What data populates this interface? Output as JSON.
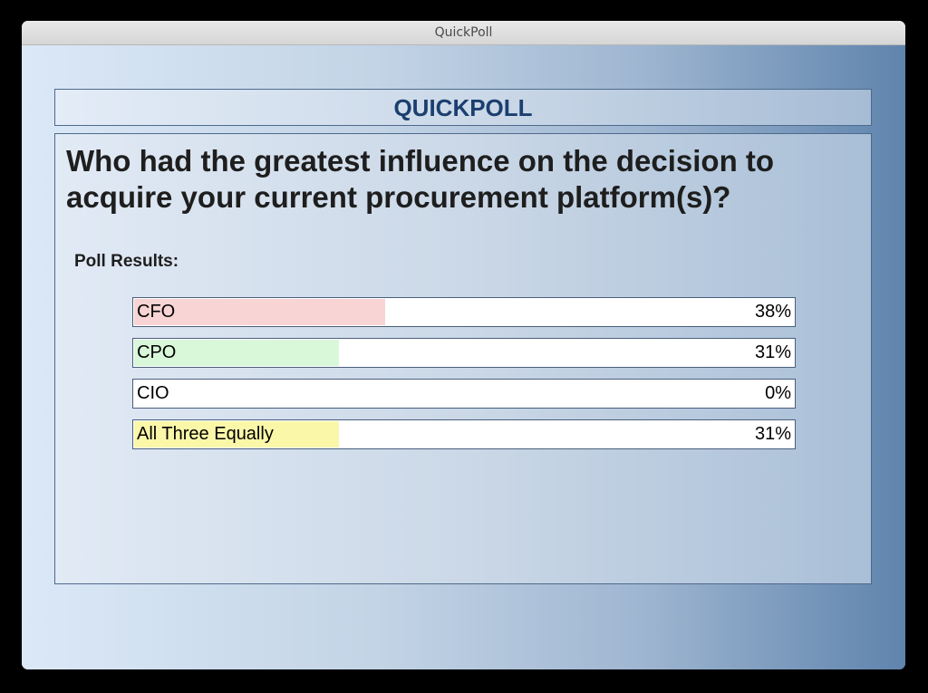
{
  "window": {
    "title": "QuickPoll"
  },
  "header": {
    "title": "QUICKPOLL"
  },
  "question": "Who had the greatest influence on the decision to acquire your current procurement platform(s)?",
  "results_label": "Poll Results:",
  "results": [
    {
      "label": "CFO",
      "percent_text": "38%",
      "percent": 38,
      "color": "#f8d4d4"
    },
    {
      "label": "CPO",
      "percent_text": "31%",
      "percent": 31,
      "color": "#d9f8d9"
    },
    {
      "label": "CIO",
      "percent_text": "0%",
      "percent": 0,
      "color": "#dde6f6"
    },
    {
      "label": "All Three Equally",
      "percent_text": "31%",
      "percent": 31,
      "color": "#fbf7a9"
    }
  ]
}
